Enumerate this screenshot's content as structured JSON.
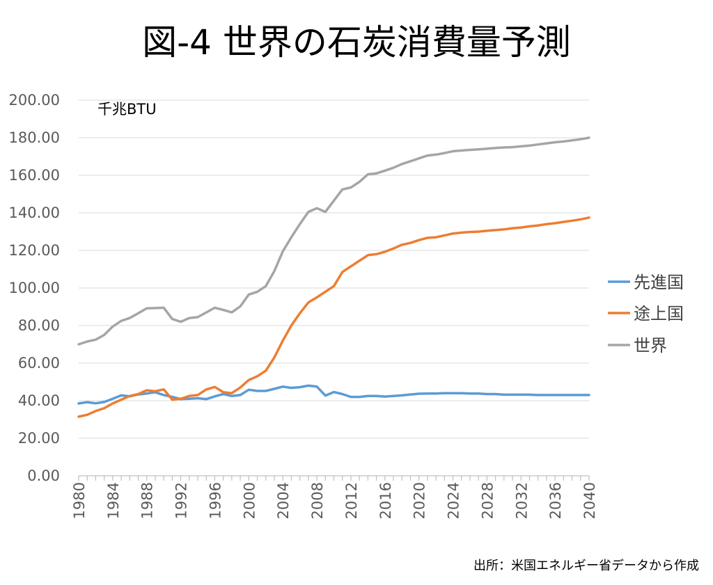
{
  "chart_data": {
    "type": "line",
    "title": "図-4 世界の石炭消費量予測",
    "unit_label": "千兆BTU",
    "source": "出所：米国エネルギー省データから作成",
    "ylim": [
      0,
      200
    ],
    "yticks": [
      "0.00",
      "20.00",
      "40.00",
      "60.00",
      "80.00",
      "100.00",
      "120.00",
      "140.00",
      "160.00",
      "180.00",
      "200.00"
    ],
    "xticks": [
      "1980",
      "1984",
      "1988",
      "1992",
      "1996",
      "2000",
      "2004",
      "2008",
      "2012",
      "2016",
      "2020",
      "2024",
      "2028",
      "2032",
      "2036",
      "2040"
    ],
    "grid": true,
    "legend_position": "right",
    "x": [
      1980,
      1981,
      1982,
      1983,
      1984,
      1985,
      1986,
      1987,
      1988,
      1989,
      1990,
      1991,
      1992,
      1993,
      1994,
      1995,
      1996,
      1997,
      1998,
      1999,
      2000,
      2001,
      2002,
      2003,
      2004,
      2005,
      2006,
      2007,
      2008,
      2009,
      2010,
      2011,
      2012,
      2013,
      2014,
      2015,
      2016,
      2017,
      2018,
      2019,
      2020,
      2021,
      2022,
      2023,
      2024,
      2025,
      2026,
      2027,
      2028,
      2029,
      2030,
      2031,
      2032,
      2033,
      2034,
      2035,
      2036,
      2037,
      2038,
      2039,
      2040
    ],
    "series": [
      {
        "name": "先進国",
        "color": "#5b9bd5",
        "values": [
          38.5,
          39.2,
          38.6,
          39.3,
          41.0,
          42.8,
          42.3,
          43.3,
          43.8,
          44.5,
          43.0,
          42.0,
          40.8,
          41.0,
          41.3,
          40.8,
          42.3,
          43.5,
          42.5,
          43.0,
          45.8,
          45.2,
          45.2,
          46.3,
          47.5,
          46.8,
          47.2,
          48.0,
          47.5,
          42.7,
          44.6,
          43.5,
          42.0,
          42.0,
          42.5,
          42.5,
          42.2,
          42.5,
          42.8,
          43.3,
          43.7,
          43.8,
          43.8,
          44.0,
          44.0,
          44.0,
          43.8,
          43.8,
          43.5,
          43.5,
          43.2,
          43.2,
          43.2,
          43.2,
          43.0,
          43.0,
          43.0,
          43.0,
          43.0,
          43.0,
          43.0
        ]
      },
      {
        "name": "途上国",
        "color": "#ed7d31",
        "values": [
          31.5,
          32.5,
          34.5,
          36.0,
          38.5,
          40.5,
          42.5,
          43.5,
          45.5,
          45.0,
          46.0,
          40.5,
          41.0,
          42.5,
          43.0,
          46.0,
          47.3,
          44.5,
          44.0,
          47.0,
          51.0,
          53.0,
          56.0,
          63.0,
          72.0,
          80.0,
          86.5,
          92.3,
          95.0,
          98.0,
          101.0,
          108.5,
          111.5,
          114.5,
          117.5,
          118.0,
          119.3,
          121.0,
          123.0,
          124.0,
          125.5,
          126.7,
          127.0,
          128.0,
          129.0,
          129.5,
          129.8,
          130.0,
          130.5,
          130.8,
          131.2,
          131.8,
          132.2,
          132.8,
          133.3,
          134.0,
          134.5,
          135.2,
          135.8,
          136.5,
          137.5
        ]
      },
      {
        "name": "世界",
        "color": "#a5a5a5",
        "values": [
          70.0,
          71.5,
          72.5,
          75.0,
          79.5,
          82.5,
          84.0,
          86.5,
          89.2,
          89.3,
          89.5,
          83.5,
          82.0,
          84.0,
          84.5,
          87.0,
          89.5,
          88.3,
          87.0,
          90.2,
          96.5,
          98.0,
          101.0,
          109.0,
          119.5,
          127.0,
          134.0,
          140.5,
          142.5,
          140.5,
          146.5,
          152.5,
          153.5,
          156.5,
          160.5,
          161.0,
          162.5,
          164.0,
          166.0,
          167.5,
          169.0,
          170.5,
          171.0,
          171.8,
          172.8,
          173.2,
          173.5,
          173.8,
          174.2,
          174.5,
          174.8,
          175.0,
          175.4,
          175.8,
          176.4,
          177.0,
          177.6,
          178.0,
          178.6,
          179.2,
          180.0
        ]
      }
    ]
  }
}
